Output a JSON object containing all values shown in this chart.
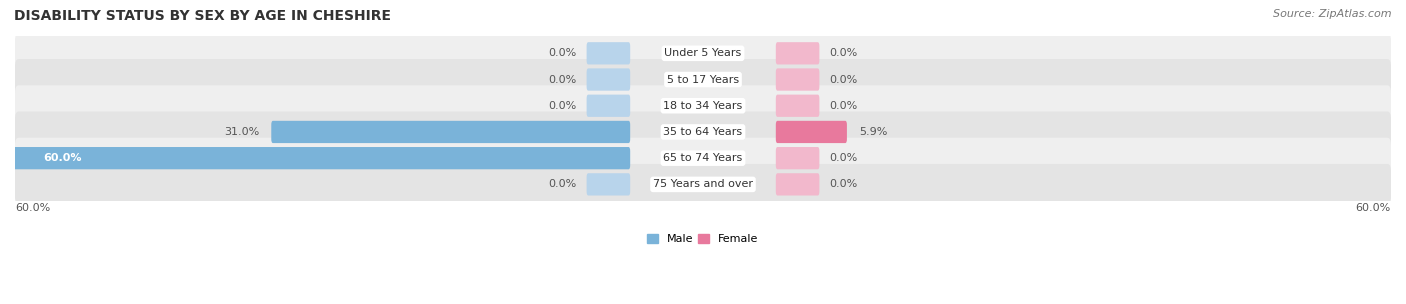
{
  "title": "DISABILITY STATUS BY SEX BY AGE IN CHESHIRE",
  "source": "Source: ZipAtlas.com",
  "categories": [
    "Under 5 Years",
    "5 to 17 Years",
    "18 to 34 Years",
    "35 to 64 Years",
    "65 to 74 Years",
    "75 Years and over"
  ],
  "male_values": [
    0.0,
    0.0,
    0.0,
    31.0,
    60.0,
    0.0
  ],
  "female_values": [
    0.0,
    0.0,
    0.0,
    5.9,
    0.0,
    0.0
  ],
  "male_color": "#7ab3d9",
  "female_color": "#e8799d",
  "male_color_light": "#b8d4eb",
  "female_color_light": "#f2b8cc",
  "row_bg_color_odd": "#efefef",
  "row_bg_color_even": "#e4e4e4",
  "xlim": 60.0,
  "bar_height": 0.55,
  "title_fontsize": 10,
  "label_fontsize": 8,
  "value_fontsize": 8,
  "tick_fontsize": 8,
  "source_fontsize": 8
}
